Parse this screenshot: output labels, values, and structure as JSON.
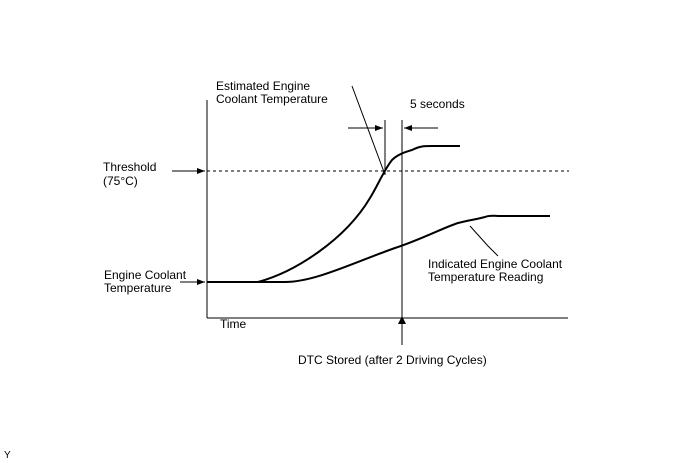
{
  "labels": {
    "estimated_line1": "Estimated Engine",
    "estimated_line2": "Coolant Temperature",
    "five_seconds": "5 seconds",
    "threshold_line1": "Threshold",
    "threshold_line2": "(75°C)",
    "y_axis_line1": "Engine Coolant",
    "y_axis_line2": "Temperature",
    "indicated_line1": "Indicated Engine Coolant",
    "indicated_line2": "Temperature Reading",
    "x_axis": "Time",
    "dtc_stored": "DTC Stored (after 2 Driving Cycles)",
    "corner_mark": "Y"
  },
  "colors": {
    "line": "#000000",
    "background": "#ffffff"
  }
}
